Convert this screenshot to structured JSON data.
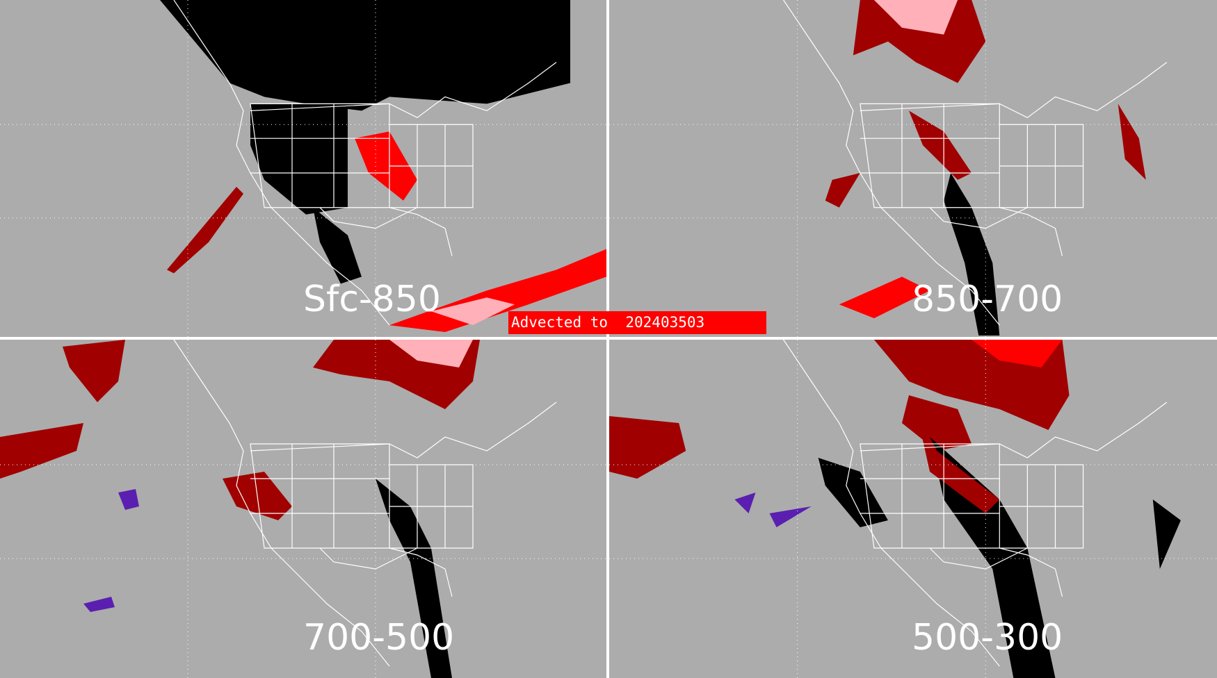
{
  "panels": [
    {
      "label": "Sfc-850"
    },
    {
      "label": "850-700"
    },
    {
      "label": "700-500"
    },
    {
      "label": "500-300"
    }
  ],
  "banner": {
    "prefix": "Advected to",
    "date": "202403503"
  },
  "colors": {
    "background": "#acacac",
    "dark_red": "#a00000",
    "red": "#ff0000",
    "pink": "#ffb0b8",
    "black": "#000000",
    "purple": "#5a1fb0",
    "coastline": "#ffffff"
  }
}
